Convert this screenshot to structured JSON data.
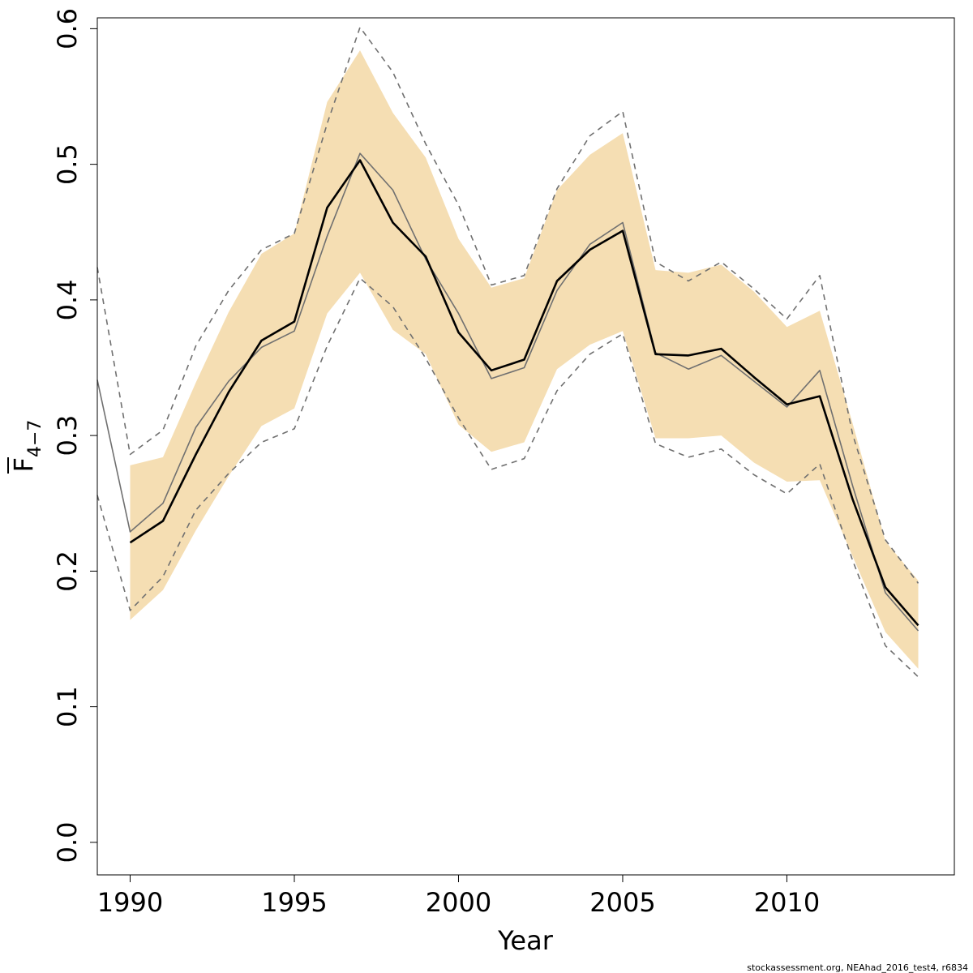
{
  "chart_data": {
    "type": "line",
    "xlabel": "Year",
    "ylabel": "F",
    "ylabel_subscript": "4−7",
    "xlim": [
      1989,
      2015.1
    ],
    "ylim": [
      -0.024,
      0.608
    ],
    "xticks": [
      1990,
      1995,
      2000,
      2005,
      2010
    ],
    "xtick_labels": [
      "1990",
      "1995",
      "2000",
      "2005",
      "2010"
    ],
    "yticks": [
      0.0,
      0.1,
      0.2,
      0.3,
      0.4,
      0.5,
      0.6
    ],
    "ytick_labels": [
      "0.0",
      "0.1",
      "0.2",
      "0.3",
      "0.4",
      "0.5",
      "0.6"
    ],
    "grid": false,
    "legend": "none",
    "colors": {
      "band": "#f5deb3",
      "estimate": "#000000",
      "previous": "#707070",
      "previous_ci": "#707070"
    },
    "confidence_band": {
      "x": [
        1990,
        1991,
        1992,
        1993,
        1994,
        1995,
        1996,
        1997,
        1998,
        1999,
        2000,
        2001,
        2002,
        2003,
        2004,
        2005,
        2006,
        2007,
        2008,
        2009,
        2010,
        2011,
        2012,
        2013,
        2014
      ],
      "upper": [
        0.278,
        0.284,
        0.339,
        0.391,
        0.434,
        0.449,
        0.546,
        0.584,
        0.538,
        0.505,
        0.445,
        0.409,
        0.416,
        0.481,
        0.507,
        0.523,
        0.422,
        0.42,
        0.426,
        0.406,
        0.38,
        0.392,
        0.309,
        0.222,
        0.193
      ],
      "lower": [
        0.164,
        0.186,
        0.23,
        0.27,
        0.307,
        0.32,
        0.39,
        0.42,
        0.378,
        0.36,
        0.308,
        0.288,
        0.295,
        0.349,
        0.367,
        0.377,
        0.298,
        0.298,
        0.3,
        0.28,
        0.266,
        0.267,
        0.211,
        0.155,
        0.128
      ]
    },
    "series": [
      {
        "x": [
          1990,
          1991,
          1992,
          1993,
          1994,
          1995,
          1996,
          1997,
          1998,
          1999,
          2000,
          2001,
          2002,
          2003,
          2004,
          2005,
          2006,
          2007,
          2008,
          2009,
          2010,
          2011,
          2012,
          2013,
          2014
        ],
        "values": [
          0.221,
          0.237,
          0.286,
          0.332,
          0.37,
          0.384,
          0.468,
          0.503,
          0.457,
          0.432,
          0.376,
          0.348,
          0.356,
          0.414,
          0.437,
          0.451,
          0.36,
          0.359,
          0.364,
          0.343,
          0.323,
          0.329,
          0.253,
          0.188,
          0.16
        ]
      },
      {
        "x": [
          1989,
          1990,
          1991,
          1992,
          1993,
          1994,
          1995,
          1996,
          1997,
          1998,
          1999,
          2000,
          2001,
          2002,
          2003,
          2004,
          2005,
          2006,
          2007,
          2008,
          2009,
          2010,
          2011,
          2012,
          2013,
          2014
        ],
        "values": [
          0.341,
          0.229,
          0.25,
          0.306,
          0.34,
          0.365,
          0.377,
          0.447,
          0.508,
          0.481,
          0.43,
          0.39,
          0.342,
          0.35,
          0.407,
          0.441,
          0.457,
          0.361,
          0.349,
          0.359,
          0.34,
          0.321,
          0.348,
          0.263,
          0.184,
          0.156
        ]
      },
      {
        "x": [
          1989,
          1990,
          1991,
          1992,
          1993,
          1994,
          1995,
          1996,
          1997,
          1998,
          1999,
          2000,
          2001,
          2002,
          2003,
          2004,
          2005,
          2006,
          2007,
          2008,
          2009,
          2010,
          2011,
          2012,
          2013,
          2014
        ],
        "values": [
          0.424,
          0.286,
          0.304,
          0.366,
          0.407,
          0.437,
          0.449,
          0.53,
          0.601,
          0.568,
          0.515,
          0.47,
          0.411,
          0.418,
          0.482,
          0.521,
          0.539,
          0.428,
          0.414,
          0.428,
          0.408,
          0.386,
          0.418,
          0.301,
          0.223,
          0.191
        ]
      },
      {
        "x": [
          1989,
          1990,
          1991,
          1992,
          1993,
          1994,
          1995,
          1996,
          1997,
          1998,
          1999,
          2000,
          2001,
          2002,
          2003,
          2004,
          2005,
          2006,
          2007,
          2008,
          2009,
          2010,
          2011,
          2012,
          2013,
          2014
        ],
        "values": [
          0.256,
          0.171,
          0.196,
          0.245,
          0.272,
          0.295,
          0.305,
          0.366,
          0.416,
          0.395,
          0.357,
          0.313,
          0.275,
          0.283,
          0.333,
          0.36,
          0.375,
          0.294,
          0.284,
          0.29,
          0.271,
          0.257,
          0.279,
          0.208,
          0.145,
          0.122
        ]
      }
    ]
  },
  "footer": "stockassessment.org, NEAhad_2016_test4, r6834"
}
